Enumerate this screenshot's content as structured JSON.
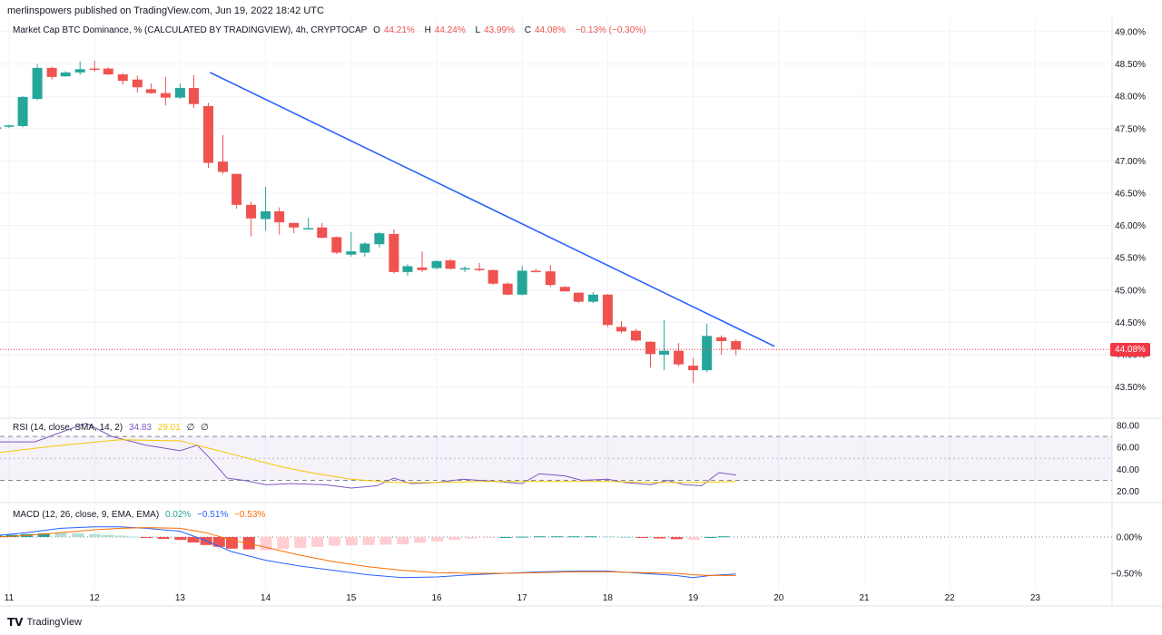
{
  "header": {
    "published_by": "merlinspowers published on TradingView.com, Jun 19, 2022 18:42 UTC"
  },
  "main_legend": {
    "symbol": "Market Cap BTC Dominance, % (CALCULATED BY TRADINGVIEW), 4h, CRYPTOCAP",
    "o_label": "O",
    "o_value": "44.21%",
    "h_label": "H",
    "h_value": "44.24%",
    "l_label": "L",
    "l_value": "43.99%",
    "c_label": "C",
    "c_value": "44.08%",
    "change": "−0.13% (−0.30%)"
  },
  "price_badge": "44.08%",
  "rsi_legend": {
    "label": "RSI (14, close, SMA, 14, 2)",
    "rsi": "34.83",
    "sma": "29.01",
    "v1": "∅",
    "v2": "∅"
  },
  "macd_legend": {
    "label": "MACD (12, 26, close, 9, EMA, EMA)",
    "hist": "0.02%",
    "macd": "−0.51%",
    "signal": "−0.53%"
  },
  "footer": {
    "brand": "TradingView"
  },
  "colors": {
    "up": "#26a69a",
    "down": "#ef5350",
    "trendline": "#2962ff",
    "rsi": "#7e57c2",
    "rsi_ma": "#f7c600",
    "macd": "#2962ff",
    "signal": "#ff6d00",
    "grid": "#f0f3fa",
    "last_price": "#f23645"
  },
  "chart_data": {
    "type": "candlestick",
    "timeframe": "4h",
    "x_axis_ticks": [
      "11",
      "12",
      "13",
      "14",
      "15",
      "16",
      "17",
      "18",
      "19",
      "20",
      "21",
      "22",
      "23"
    ],
    "y_axis_ticks": [
      "49.00%",
      "48.50%",
      "48.00%",
      "47.50%",
      "47.00%",
      "46.50%",
      "46.00%",
      "45.50%",
      "45.00%",
      "44.50%",
      "44.00%",
      "43.50%"
    ],
    "ylim": [
      43.1,
      49.05
    ],
    "last_price": 44.08,
    "trendline": {
      "from": {
        "x": 13.35,
        "y": 48.37
      },
      "to": {
        "x": 19.95,
        "y": 44.13
      }
    },
    "candles": [
      {
        "t": 10.85,
        "o": 47.52,
        "h": 47.56,
        "l": 47.49,
        "c": 47.52
      },
      {
        "t": 11.0,
        "o": 47.53,
        "h": 47.56,
        "l": 47.51,
        "c": 47.55
      },
      {
        "t": 11.16,
        "o": 47.54,
        "h": 48.0,
        "l": 47.52,
        "c": 47.99
      },
      {
        "t": 11.33,
        "o": 47.96,
        "h": 48.5,
        "l": 47.94,
        "c": 48.44
      },
      {
        "t": 11.5,
        "o": 48.44,
        "h": 48.46,
        "l": 48.26,
        "c": 48.3
      },
      {
        "t": 11.66,
        "o": 48.31,
        "h": 48.39,
        "l": 48.3,
        "c": 48.37
      },
      {
        "t": 11.83,
        "o": 48.37,
        "h": 48.54,
        "l": 48.33,
        "c": 48.42
      },
      {
        "t": 12.0,
        "o": 48.43,
        "h": 48.55,
        "l": 48.38,
        "c": 48.41
      },
      {
        "t": 12.16,
        "o": 48.43,
        "h": 48.45,
        "l": 48.33,
        "c": 48.34
      },
      {
        "t": 12.33,
        "o": 48.34,
        "h": 48.36,
        "l": 48.18,
        "c": 48.24
      },
      {
        "t": 12.5,
        "o": 48.26,
        "h": 48.32,
        "l": 48.06,
        "c": 48.14
      },
      {
        "t": 12.66,
        "o": 48.11,
        "h": 48.2,
        "l": 48.04,
        "c": 48.05
      },
      {
        "t": 12.83,
        "o": 48.05,
        "h": 48.3,
        "l": 47.86,
        "c": 47.98
      },
      {
        "t": 13.0,
        "o": 47.98,
        "h": 48.2,
        "l": 47.96,
        "c": 48.13
      },
      {
        "t": 13.16,
        "o": 48.13,
        "h": 48.33,
        "l": 47.82,
        "c": 47.88
      },
      {
        "t": 13.33,
        "o": 47.85,
        "h": 47.9,
        "l": 46.89,
        "c": 46.97
      },
      {
        "t": 13.5,
        "o": 46.99,
        "h": 47.4,
        "l": 46.8,
        "c": 46.83
      },
      {
        "t": 13.66,
        "o": 46.8,
        "h": 46.8,
        "l": 46.26,
        "c": 46.32
      },
      {
        "t": 13.83,
        "o": 46.32,
        "h": 46.37,
        "l": 45.83,
        "c": 46.11
      },
      {
        "t": 14.0,
        "o": 46.1,
        "h": 46.6,
        "l": 45.92,
        "c": 46.22
      },
      {
        "t": 14.16,
        "o": 46.22,
        "h": 46.28,
        "l": 45.86,
        "c": 46.05
      },
      {
        "t": 14.33,
        "o": 46.04,
        "h": 46.04,
        "l": 45.88,
        "c": 45.97
      },
      {
        "t": 14.5,
        "o": 45.96,
        "h": 46.12,
        "l": 45.95,
        "c": 45.96
      },
      {
        "t": 14.66,
        "o": 45.97,
        "h": 46.04,
        "l": 45.8,
        "c": 45.81
      },
      {
        "t": 14.83,
        "o": 45.82,
        "h": 45.83,
        "l": 45.56,
        "c": 45.58
      },
      {
        "t": 15.0,
        "o": 45.55,
        "h": 45.9,
        "l": 45.52,
        "c": 45.6
      },
      {
        "t": 15.16,
        "o": 45.58,
        "h": 45.74,
        "l": 45.52,
        "c": 45.72
      },
      {
        "t": 15.33,
        "o": 45.71,
        "h": 45.9,
        "l": 45.66,
        "c": 45.88
      },
      {
        "t": 15.5,
        "o": 45.87,
        "h": 45.94,
        "l": 45.26,
        "c": 45.28
      },
      {
        "t": 15.66,
        "o": 45.28,
        "h": 45.4,
        "l": 45.22,
        "c": 45.37
      },
      {
        "t": 15.83,
        "o": 45.35,
        "h": 45.6,
        "l": 45.28,
        "c": 45.31
      },
      {
        "t": 16.0,
        "o": 45.34,
        "h": 45.46,
        "l": 45.32,
        "c": 45.45
      },
      {
        "t": 16.16,
        "o": 45.46,
        "h": 45.48,
        "l": 45.32,
        "c": 45.33
      },
      {
        "t": 16.33,
        "o": 45.33,
        "h": 45.37,
        "l": 45.28,
        "c": 45.34
      },
      {
        "t": 16.5,
        "o": 45.33,
        "h": 45.42,
        "l": 45.29,
        "c": 45.32
      },
      {
        "t": 16.66,
        "o": 45.31,
        "h": 45.32,
        "l": 45.08,
        "c": 45.1
      },
      {
        "t": 16.83,
        "o": 45.1,
        "h": 45.12,
        "l": 44.92,
        "c": 44.93
      },
      {
        "t": 17.0,
        "o": 44.93,
        "h": 45.37,
        "l": 44.92,
        "c": 45.3
      },
      {
        "t": 17.16,
        "o": 45.3,
        "h": 45.33,
        "l": 45.27,
        "c": 45.29
      },
      {
        "t": 17.33,
        "o": 45.29,
        "h": 45.39,
        "l": 45.05,
        "c": 45.08
      },
      {
        "t": 17.5,
        "o": 45.05,
        "h": 45.06,
        "l": 44.98,
        "c": 44.98
      },
      {
        "t": 17.66,
        "o": 44.96,
        "h": 44.96,
        "l": 44.8,
        "c": 44.82
      },
      {
        "t": 17.83,
        "o": 44.82,
        "h": 44.97,
        "l": 44.8,
        "c": 44.93
      },
      {
        "t": 18.0,
        "o": 44.93,
        "h": 44.94,
        "l": 44.43,
        "c": 44.46
      },
      {
        "t": 18.16,
        "o": 44.43,
        "h": 44.52,
        "l": 44.33,
        "c": 44.36
      },
      {
        "t": 18.33,
        "o": 44.37,
        "h": 44.4,
        "l": 44.2,
        "c": 44.22
      },
      {
        "t": 18.5,
        "o": 44.2,
        "h": 44.21,
        "l": 43.8,
        "c": 44.01
      },
      {
        "t": 18.66,
        "o": 44.0,
        "h": 44.54,
        "l": 43.76,
        "c": 44.06
      },
      {
        "t": 18.83,
        "o": 44.06,
        "h": 44.18,
        "l": 43.82,
        "c": 43.85
      },
      {
        "t": 19.0,
        "o": 43.83,
        "h": 43.95,
        "l": 43.56,
        "c": 43.76
      },
      {
        "t": 19.16,
        "o": 43.76,
        "h": 44.48,
        "l": 43.73,
        "c": 44.29
      },
      {
        "t": 19.33,
        "o": 44.27,
        "h": 44.3,
        "l": 44.0,
        "c": 44.21
      },
      {
        "t": 19.5,
        "o": 44.21,
        "h": 44.24,
        "l": 43.99,
        "c": 44.08
      }
    ],
    "rsi": {
      "ylim": [
        15,
        85
      ],
      "y_axis_ticks": [
        "80.00",
        "60.00",
        "40.00",
        "20.00"
      ],
      "bands": [
        70,
        50,
        30
      ],
      "x": [
        10.85,
        11.3,
        11.9,
        12.2,
        12.6,
        13.0,
        13.2,
        13.35,
        13.55,
        13.75,
        14.0,
        14.3,
        14.7,
        15.0,
        15.3,
        15.5,
        15.7,
        16.0,
        16.3,
        16.7,
        17.0,
        17.2,
        17.5,
        17.7,
        18.0,
        18.2,
        18.5,
        18.7,
        18.9,
        19.1,
        19.3,
        19.5
      ],
      "rsi_values": [
        65,
        65,
        88,
        70,
        62,
        57,
        62,
        50,
        32,
        30,
        26,
        27,
        26,
        23,
        25,
        32,
        27,
        28,
        31,
        29,
        27,
        36,
        34,
        30,
        31,
        28,
        26,
        30,
        26,
        25,
        37,
        34.83
      ],
      "ma_x": [
        10.85,
        11.5,
        12.3,
        13.0,
        13.4,
        13.8,
        14.2,
        14.6,
        15.0,
        15.5,
        16.0,
        16.5,
        17.0,
        17.5,
        18.0,
        18.5,
        19.0,
        19.5
      ],
      "ma_values": [
        55,
        61,
        67,
        66,
        58,
        50,
        42,
        36,
        31,
        28,
        28,
        29,
        29,
        29,
        29,
        28,
        28,
        29.01
      ]
    },
    "macd": {
      "ylim": [
        -0.8,
        0.22
      ],
      "y_axis_ticks": [
        "0.00%",
        "−0.50%"
      ],
      "x": [
        10.85,
        11.2,
        11.6,
        12.0,
        12.3,
        12.6,
        13.0,
        13.3,
        13.6,
        14.0,
        14.4,
        14.8,
        15.2,
        15.6,
        16.0,
        16.4,
        16.8,
        17.2,
        17.6,
        18.0,
        18.4,
        18.8,
        19.0,
        19.2,
        19.5
      ],
      "macd_values": [
        0.02,
        0.06,
        0.12,
        0.14,
        0.14,
        0.12,
        0.08,
        -0.05,
        -0.2,
        -0.32,
        -0.4,
        -0.46,
        -0.52,
        -0.56,
        -0.55,
        -0.52,
        -0.5,
        -0.48,
        -0.47,
        -0.47,
        -0.5,
        -0.53,
        -0.56,
        -0.53,
        -0.51
      ],
      "signal_values": [
        0.0,
        0.02,
        0.06,
        0.1,
        0.12,
        0.13,
        0.12,
        0.06,
        -0.04,
        -0.14,
        -0.25,
        -0.34,
        -0.41,
        -0.46,
        -0.49,
        -0.5,
        -0.5,
        -0.49,
        -0.48,
        -0.48,
        -0.49,
        -0.5,
        -0.52,
        -0.53,
        -0.53
      ],
      "hist_values": [
        0.02,
        0.04,
        0.06,
        0.04,
        0.02,
        -0.01,
        -0.04,
        -0.11,
        -0.16,
        -0.18,
        -0.15,
        -0.12,
        -0.11,
        -0.1,
        -0.06,
        -0.02,
        0.0,
        0.01,
        0.01,
        0.01,
        -0.01,
        -0.03,
        -0.04,
        0.0,
        0.02
      ]
    }
  }
}
